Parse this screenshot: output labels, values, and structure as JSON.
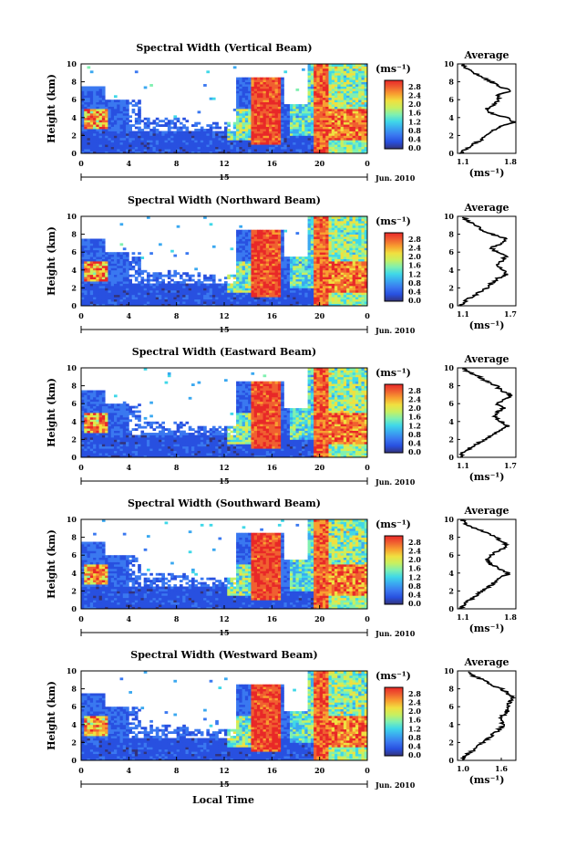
{
  "chart_data": {
    "type": "heatmap",
    "xlabel": "Local Time",
    "date_label": "15",
    "month_label": "Jun. 2010",
    "x_ticks": [
      "0",
      "4",
      "8",
      "12",
      "16",
      "20",
      "0"
    ],
    "y_ticks": [
      "0",
      "2",
      "4",
      "6",
      "8",
      "10"
    ],
    "ylabel": "Height (km)",
    "xlim": [
      0,
      24
    ],
    "ylim": [
      0,
      10
    ],
    "colorbar": {
      "unit": "(ms⁻¹)",
      "ticks": [
        "0.0",
        "0.4",
        "0.8",
        "1.2",
        "1.6",
        "2.0",
        "2.4",
        "2.8"
      ],
      "range": [
        0,
        3.0
      ],
      "colors": [
        "#33337a",
        "#2850e0",
        "#3a78f0",
        "#3aa8f0",
        "#40d8e8",
        "#80f0b0",
        "#c8f060",
        "#f0e040",
        "#f8a030",
        "#f06030",
        "#e82828"
      ]
    },
    "average": {
      "title": "Average",
      "xlabel": "(ms⁻¹)"
    },
    "panels": [
      {
        "title": "Spectral Width (Vertical Beam)",
        "avg_xticks": [
          "1.1",
          "1.8"
        ],
        "avg_xlim": [
          1.1,
          1.8
        ],
        "avg_profile": [
          [
            0.0,
            1.15
          ],
          [
            0.5,
            1.2
          ],
          [
            1.0,
            1.28
          ],
          [
            1.5,
            1.38
          ],
          [
            2.0,
            1.45
          ],
          [
            2.5,
            1.52
          ],
          [
            3.0,
            1.62
          ],
          [
            3.5,
            1.78
          ],
          [
            4.0,
            1.7
          ],
          [
            4.5,
            1.5
          ],
          [
            5.0,
            1.45
          ],
          [
            5.5,
            1.55
          ],
          [
            6.0,
            1.6
          ],
          [
            6.5,
            1.58
          ],
          [
            7.0,
            1.75
          ],
          [
            7.5,
            1.6
          ],
          [
            8.0,
            1.5
          ],
          [
            8.5,
            1.42
          ],
          [
            9.0,
            1.3
          ],
          [
            9.5,
            1.2
          ],
          [
            10.0,
            1.15
          ]
        ]
      },
      {
        "title": "Spectral Width (Northward Beam)",
        "avg_xticks": [
          "1.1",
          "1.7"
        ],
        "avg_xlim": [
          1.1,
          1.7
        ],
        "avg_profile": [
          [
            0.0,
            1.12
          ],
          [
            0.5,
            1.18
          ],
          [
            1.0,
            1.25
          ],
          [
            1.5,
            1.32
          ],
          [
            2.0,
            1.4
          ],
          [
            2.5,
            1.45
          ],
          [
            3.0,
            1.5
          ],
          [
            3.5,
            1.6
          ],
          [
            4.0,
            1.58
          ],
          [
            4.5,
            1.5
          ],
          [
            5.0,
            1.55
          ],
          [
            5.5,
            1.6
          ],
          [
            6.0,
            1.5
          ],
          [
            6.5,
            1.45
          ],
          [
            7.0,
            1.55
          ],
          [
            7.5,
            1.6
          ],
          [
            8.0,
            1.45
          ],
          [
            8.5,
            1.35
          ],
          [
            9.0,
            1.3
          ],
          [
            9.5,
            1.2
          ],
          [
            10.0,
            1.15
          ]
        ]
      },
      {
        "title": "Spectral Width (Eastward Beam)",
        "avg_xticks": [
          "1.1",
          "1.7"
        ],
        "avg_xlim": [
          1.1,
          1.7
        ],
        "avg_profile": [
          [
            0.0,
            1.12
          ],
          [
            0.5,
            1.15
          ],
          [
            1.0,
            1.22
          ],
          [
            1.5,
            1.3
          ],
          [
            2.0,
            1.38
          ],
          [
            2.5,
            1.45
          ],
          [
            3.0,
            1.55
          ],
          [
            3.5,
            1.62
          ],
          [
            4.0,
            1.55
          ],
          [
            4.5,
            1.48
          ],
          [
            5.0,
            1.5
          ],
          [
            5.5,
            1.58
          ],
          [
            6.0,
            1.5
          ],
          [
            6.5,
            1.6
          ],
          [
            7.0,
            1.65
          ],
          [
            7.5,
            1.55
          ],
          [
            8.0,
            1.5
          ],
          [
            8.5,
            1.4
          ],
          [
            9.0,
            1.32
          ],
          [
            9.5,
            1.22
          ],
          [
            10.0,
            1.15
          ]
        ]
      },
      {
        "title": "Spectral Width (Southward Beam)",
        "avg_xticks": [
          "1.1",
          "1.8"
        ],
        "avg_xlim": [
          1.1,
          1.8
        ],
        "avg_profile": [
          [
            0.0,
            1.12
          ],
          [
            0.5,
            1.18
          ],
          [
            1.0,
            1.25
          ],
          [
            1.5,
            1.32
          ],
          [
            2.0,
            1.4
          ],
          [
            2.5,
            1.48
          ],
          [
            3.0,
            1.55
          ],
          [
            3.5,
            1.62
          ],
          [
            4.0,
            1.72
          ],
          [
            4.5,
            1.6
          ],
          [
            5.0,
            1.5
          ],
          [
            5.5,
            1.45
          ],
          [
            6.0,
            1.5
          ],
          [
            6.5,
            1.58
          ],
          [
            7.0,
            1.7
          ],
          [
            7.5,
            1.65
          ],
          [
            8.0,
            1.55
          ],
          [
            8.5,
            1.45
          ],
          [
            9.0,
            1.3
          ],
          [
            9.5,
            1.2
          ],
          [
            10.0,
            1.15
          ]
        ]
      },
      {
        "title": "Spectral Width (Westward Beam)",
        "avg_xticks": [
          "1.0",
          "1.6"
        ],
        "avg_xlim": [
          1.0,
          1.8
        ],
        "avg_profile": [
          [
            0.0,
            1.05
          ],
          [
            0.5,
            1.1
          ],
          [
            1.0,
            1.2
          ],
          [
            1.5,
            1.28
          ],
          [
            2.0,
            1.35
          ],
          [
            2.5,
            1.42
          ],
          [
            3.0,
            1.5
          ],
          [
            3.5,
            1.58
          ],
          [
            4.0,
            1.62
          ],
          [
            4.5,
            1.6
          ],
          [
            5.0,
            1.62
          ],
          [
            5.5,
            1.68
          ],
          [
            6.0,
            1.7
          ],
          [
            6.5,
            1.72
          ],
          [
            7.0,
            1.75
          ],
          [
            7.5,
            1.7
          ],
          [
            8.0,
            1.6
          ],
          [
            8.5,
            1.45
          ],
          [
            9.0,
            1.35
          ],
          [
            9.5,
            1.2
          ],
          [
            10.0,
            1.15
          ]
        ]
      }
    ]
  }
}
